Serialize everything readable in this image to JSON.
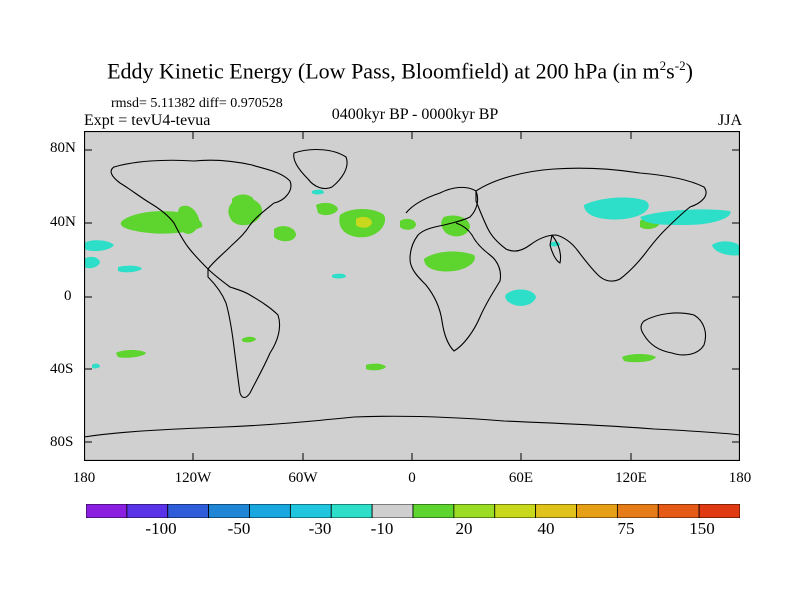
{
  "title": {
    "main": "Eddy Kinetic Energy (Low Pass, Bloomfield) at 200 hPa (in m",
    "sup1": "2",
    "mid": "s",
    "sup2": "-2",
    "end": ")"
  },
  "stats": "rmsd= 5.11382 diff= 0.970528",
  "expt": "Expt = tevU4-tevua",
  "period": "0400kyr BP - 0000kyr BP",
  "season": "JJA",
  "axes": {
    "lat_labels": [
      "80N",
      "40N",
      "0",
      "40S",
      "80S"
    ],
    "lon_labels": [
      "180",
      "120W",
      "60W",
      "0",
      "60E",
      "120E",
      "180"
    ]
  },
  "colorbar": {
    "colors": [
      "#8a1fe0",
      "#5a32e8",
      "#2f5cd8",
      "#1f86d6",
      "#19a7e0",
      "#1fc6de",
      "#2ddfc8",
      "#cfcfcf",
      "#5ed42e",
      "#9bdc24",
      "#c8d81c",
      "#e0c21a",
      "#e6a018",
      "#e67c18",
      "#e65a18",
      "#e03a12"
    ],
    "labels": [
      "-100",
      "-50",
      "-30",
      "-10",
      "20",
      "40",
      "75",
      "150"
    ]
  },
  "map": {
    "background": "#d0d0d0",
    "coast_color": "#000000"
  }
}
